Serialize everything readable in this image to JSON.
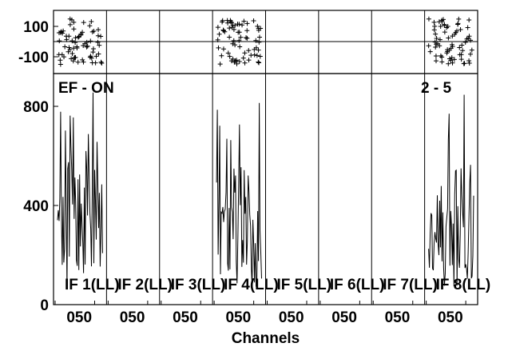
{
  "chart_data": {
    "type": "line",
    "xlabel": "Channels",
    "annotations": {
      "left": "EF - ON",
      "right": "2 - 5"
    },
    "phase_panel": {
      "ytick_labels": [
        "100",
        "-100"
      ],
      "ytick_values": [
        100,
        -100
      ],
      "ylim": [
        -180,
        180
      ],
      "marker": "+"
    },
    "amp_panel": {
      "ytick_labels": [
        "800",
        "400",
        "0"
      ],
      "ytick_values": [
        800,
        400,
        0
      ],
      "ylim": [
        0,
        920
      ]
    },
    "xlim": [
      0,
      63
    ],
    "xtick_label": "050",
    "panels": [
      {
        "label": "IF 1(LL)",
        "xtick": "050",
        "has_data": true,
        "seed": 11
      },
      {
        "label": "IF 2(LL)",
        "xtick": "050",
        "has_data": false
      },
      {
        "label": "IF 3(LL)",
        "xtick": "050",
        "has_data": false
      },
      {
        "label": "IF 4(LL)",
        "xtick": "050",
        "has_data": true,
        "seed": 29
      },
      {
        "label": "IF 5(LL)",
        "xtick": "050",
        "has_data": false
      },
      {
        "label": "IF 6(LL)",
        "xtick": "050",
        "has_data": false
      },
      {
        "label": "IF 7(LL)",
        "xtick": "050",
        "has_data": false
      },
      {
        "label": "IF 8(LL)",
        "xtick": "050",
        "has_data": true,
        "seed": 47
      }
    ]
  }
}
